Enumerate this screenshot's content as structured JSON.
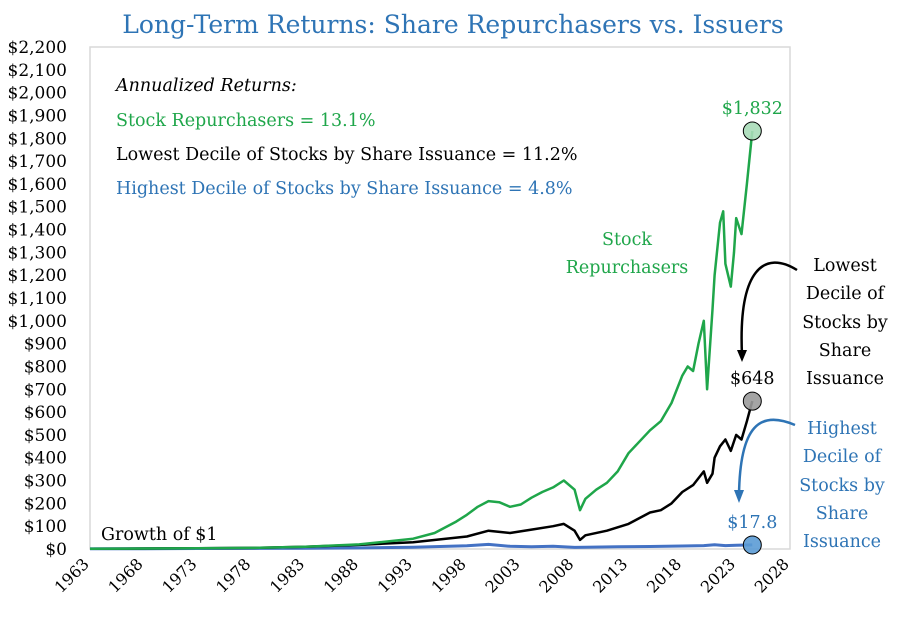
{
  "chart_data": {
    "type": "line",
    "title": "Long-Term Returns: Share Repurchasers vs. Issuers",
    "xlabel": "",
    "ylabel": "",
    "xlim": [
      1963,
      2028
    ],
    "ylim": [
      0,
      2200
    ],
    "x_ticks": [
      1963,
      1968,
      1973,
      1978,
      1983,
      1988,
      1993,
      1998,
      2003,
      2008,
      2013,
      2018,
      2023,
      2028
    ],
    "x_tick_labels": [
      "1963",
      "1968",
      "1973",
      "1978",
      "1983",
      "1988",
      "1993",
      "1998",
      "2003",
      "2008",
      "2013",
      "2018",
      "2023",
      "2028"
    ],
    "y_ticks": [
      0,
      100,
      200,
      300,
      400,
      500,
      600,
      700,
      800,
      900,
      1000,
      1100,
      1200,
      1300,
      1400,
      1500,
      1600,
      1700,
      1800,
      1900,
      2000,
      2100,
      2200
    ],
    "y_tick_labels": [
      "$0",
      "$100",
      "$200",
      "$300",
      "$400",
      "$500",
      "$600",
      "$700",
      "$800",
      "$900",
      "$1,000",
      "$1,100",
      "$1,200",
      "$1,300",
      "$1,400",
      "$1,500",
      "$1,600",
      "$1,700",
      "$1,800",
      "$1,900",
      "$2,000",
      "$2,100",
      "$2,200"
    ],
    "legend_box": {
      "heading": "Annualized Returns:",
      "lines": [
        {
          "text": "Stock Repurchasers = 13.1%",
          "color": "#1fa64a"
        },
        {
          "text": "Lowest Decile of Stocks by Share Issuance = 11.2%",
          "color": "#000000"
        },
        {
          "text": "Highest Decile of Stocks by Share Issuance = 4.8%",
          "color": "#2e74b5"
        }
      ]
    },
    "series": [
      {
        "name": "Stock Repurchasers",
        "color": "#1fa64a",
        "end_label": "$1,832",
        "end_value": 1832,
        "x": [
          1963,
          1968,
          1973,
          1978,
          1983,
          1988,
          1993,
          1995,
          1997,
          1998,
          1999,
          2000,
          2001,
          2002,
          2003,
          2004,
          2005,
          2006,
          2007,
          2008,
          2008.5,
          2009,
          2010,
          2011,
          2012,
          2013,
          2014,
          2015,
          2016,
          2017,
          2018,
          2018.5,
          2019,
          2019.5,
          2020,
          2020.3,
          2020.8,
          2021,
          2021.5,
          2021.8,
          2022,
          2022.5,
          2022.8,
          2023,
          2023.5,
          2024,
          2024.5
        ],
        "values": [
          1,
          2,
          3,
          5,
          10,
          20,
          45,
          70,
          120,
          150,
          185,
          210,
          205,
          185,
          195,
          225,
          250,
          270,
          300,
          260,
          170,
          220,
          260,
          290,
          340,
          420,
          470,
          520,
          560,
          640,
          760,
          800,
          780,
          900,
          1000,
          700,
          1050,
          1200,
          1430,
          1480,
          1250,
          1150,
          1300,
          1450,
          1380,
          1600,
          1832
        ]
      },
      {
        "name": "Lowest Decile of Stocks by Share Issuance",
        "color": "#000000",
        "end_label": "$648",
        "end_value": 648,
        "x": [
          1963,
          1968,
          1973,
          1978,
          1983,
          1988,
          1993,
          1998,
          2000,
          2002,
          2004,
          2006,
          2007,
          2008,
          2008.5,
          2009,
          2011,
          2013,
          2015,
          2016,
          2017,
          2018,
          2019,
          2020,
          2020.3,
          2020.8,
          2021,
          2021.5,
          2022,
          2022.5,
          2023,
          2023.5,
          2024,
          2024.5
        ],
        "values": [
          1,
          2,
          3,
          5,
          10,
          18,
          30,
          55,
          80,
          70,
          85,
          100,
          110,
          80,
          40,
          60,
          80,
          110,
          160,
          170,
          200,
          250,
          280,
          340,
          290,
          330,
          400,
          450,
          480,
          430,
          500,
          480,
          560,
          648
        ]
      },
      {
        "name": "Highest Decile of Stocks by Share Issuance",
        "color": "#4472c4",
        "end_label": "$17.8",
        "end_value": 17.8,
        "x": [
          1963,
          1968,
          1973,
          1978,
          1983,
          1988,
          1993,
          1998,
          2000,
          2002,
          2004,
          2006,
          2008,
          2009,
          2012,
          2015,
          2018,
          2020,
          2021,
          2022,
          2023,
          2024.5
        ],
        "values": [
          1,
          1.5,
          2,
          2.5,
          3.5,
          5,
          8,
          14,
          20,
          12,
          10,
          12,
          7,
          8,
          10,
          11,
          13,
          15,
          19,
          15,
          16,
          17.8
        ]
      }
    ],
    "annotations": [
      {
        "id": "growth",
        "text": "Growth of $1",
        "color": "#000000"
      },
      {
        "id": "repurchasers",
        "lines": [
          "Stock",
          "Repurchasers"
        ],
        "color": "#1fa64a"
      },
      {
        "id": "lowest",
        "lines": [
          "Lowest",
          "Decile of",
          "Stocks by",
          "Share",
          "Issuance"
        ],
        "color": "#000000"
      },
      {
        "id": "highest",
        "lines": [
          "Highest",
          "Decile of",
          "Stocks by",
          "Share",
          "Issuance"
        ],
        "color": "#2e74b5"
      }
    ]
  }
}
